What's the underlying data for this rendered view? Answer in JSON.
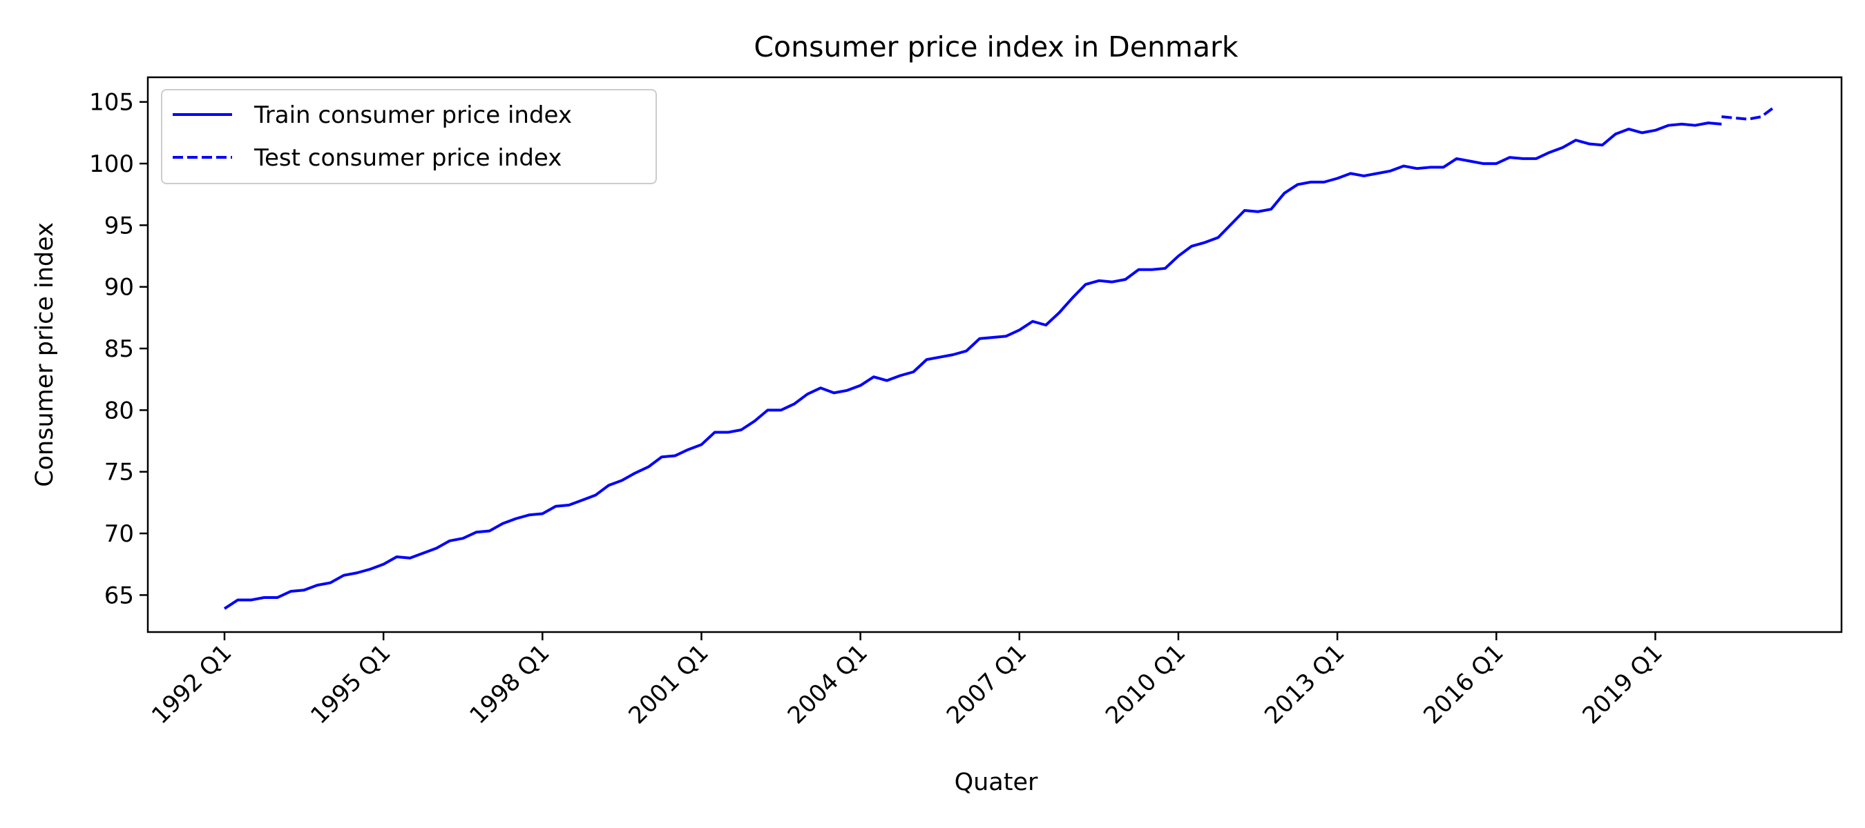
{
  "chart_data": {
    "type": "line",
    "title": "Consumer price index in Denmark",
    "xlabel": "Quater",
    "ylabel": "Consumer price index",
    "x_start": "1992 Q1",
    "xticks": [
      "1992 Q1",
      "1995 Q1",
      "1998 Q1",
      "2001 Q1",
      "2004 Q1",
      "2007 Q1",
      "2010 Q1",
      "2013 Q1",
      "2016 Q1",
      "2019 Q1"
    ],
    "yticks": [
      65,
      70,
      75,
      80,
      85,
      90,
      95,
      100,
      105
    ],
    "ylim": [
      62,
      107
    ],
    "grid": false,
    "legend_position": "top-left",
    "colors": {
      "series": "#0000ff",
      "axes": "#000000",
      "background": "#ffffff"
    },
    "series": [
      {
        "name": "Train consumer price index",
        "style": "solid",
        "start_quarter": "1992 Q1",
        "values": [
          63.9,
          64.6,
          64.6,
          64.8,
          64.8,
          65.3,
          65.4,
          65.8,
          66.0,
          66.6,
          66.8,
          67.1,
          67.5,
          68.1,
          68.0,
          68.4,
          68.8,
          69.4,
          69.6,
          70.1,
          70.2,
          70.8,
          71.2,
          71.5,
          71.6,
          72.2,
          72.3,
          72.7,
          73.1,
          73.9,
          74.3,
          74.9,
          75.4,
          76.2,
          76.3,
          76.8,
          77.2,
          78.2,
          78.2,
          78.4,
          79.1,
          80.0,
          80.0,
          80.5,
          81.3,
          81.8,
          81.4,
          81.6,
          82.0,
          82.7,
          82.4,
          82.8,
          83.1,
          84.1,
          84.3,
          84.5,
          84.8,
          85.8,
          85.9,
          86.0,
          86.5,
          87.2,
          86.9,
          87.9,
          89.1,
          90.2,
          90.5,
          90.4,
          90.6,
          91.4,
          91.4,
          91.5,
          92.5,
          93.3,
          93.6,
          94.0,
          95.1,
          96.2,
          96.1,
          96.3,
          97.6,
          98.3,
          98.5,
          98.5,
          98.8,
          99.2,
          99.0,
          99.2,
          99.4,
          99.8,
          99.6,
          99.7,
          99.7,
          100.4,
          100.2,
          100.0,
          100.0,
          100.5,
          100.4,
          100.4,
          100.9,
          101.3,
          101.9,
          101.6,
          101.5,
          102.4,
          102.8,
          102.5,
          102.7,
          103.1,
          103.2,
          103.1,
          103.3,
          103.2
        ]
      },
      {
        "name": "Test consumer price index",
        "style": "dashed",
        "start_quarter": "2020 Q2",
        "values": [
          103.8,
          103.7,
          103.6,
          103.8,
          104.6
        ]
      }
    ]
  }
}
